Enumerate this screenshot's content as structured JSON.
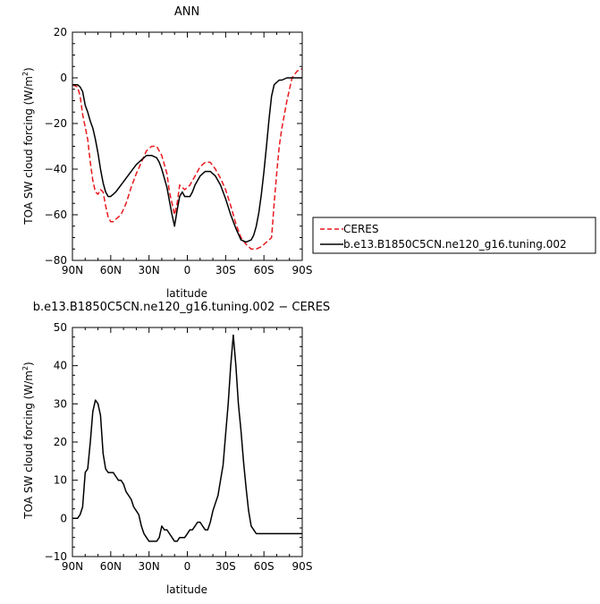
{
  "chart_data": [
    {
      "type": "line",
      "title": "ANN",
      "xlabel": "latitude",
      "ylabel": "TOA SW cloud forcing (W/m²)",
      "ylabel_main": "TOA SW cloud forcing (W/m",
      "ylabel_sup": "2",
      "ylabel_close": ")",
      "xlim": [
        90,
        -90
      ],
      "ylim": [
        -80,
        20
      ],
      "xticks": [
        90,
        60,
        30,
        0,
        -30,
        -60,
        -90
      ],
      "xtick_labels": [
        "90N",
        "60N",
        "30N",
        "0",
        "30S",
        "60S",
        "90S"
      ],
      "yticks": [
        -80,
        -60,
        -40,
        -20,
        0,
        20
      ],
      "ytick_labels": [
        "−80",
        "−60",
        "−40",
        "−20",
        "0",
        "20"
      ],
      "legend_placement": "right",
      "series": [
        {
          "name": "CERES",
          "color": "#e8191e",
          "dash": "dashed",
          "x": [
            90,
            86,
            84,
            82,
            78,
            76,
            74,
            72,
            70,
            68,
            66,
            64,
            62,
            60,
            58,
            56,
            52,
            48,
            44,
            40,
            36,
            32,
            28,
            24,
            20,
            16,
            14,
            12,
            10,
            8,
            6,
            4,
            2,
            0,
            -2,
            -4,
            -6,
            -10,
            -14,
            -18,
            -22,
            -26,
            -30,
            -34,
            -38,
            -42,
            -46,
            -50,
            -54,
            -58,
            -62,
            -66,
            -68,
            -70,
            -72,
            -74,
            -78,
            -82,
            -86,
            -90
          ],
          "y": [
            -3,
            -4,
            -8,
            -16,
            -27,
            -37,
            -45,
            -50,
            -51,
            -49,
            -50,
            -56,
            -61,
            -63,
            -63,
            -62,
            -60,
            -55,
            -48,
            -42,
            -37,
            -32,
            -30,
            -30,
            -34,
            -42,
            -50,
            -55,
            -60,
            -55,
            -47,
            -48,
            -49,
            -48,
            -47,
            -45,
            -43,
            -39,
            -37,
            -37,
            -40,
            -44,
            -49,
            -56,
            -64,
            -70,
            -73,
            -75,
            -75,
            -74,
            -72,
            -70,
            -55,
            -42,
            -30,
            -22,
            -10,
            0,
            3,
            4
          ]
        },
        {
          "name": "b.e13.B1850C5CN.ne120_g16.tuning.002",
          "color": "#000000",
          "dash": "solid",
          "x": [
            90,
            86,
            84,
            82,
            80,
            78,
            76,
            74,
            72,
            70,
            68,
            66,
            64,
            62,
            60,
            58,
            56,
            52,
            48,
            44,
            40,
            36,
            32,
            28,
            24,
            22,
            20,
            18,
            16,
            14,
            12,
            10,
            8,
            6,
            4,
            2,
            0,
            -2,
            -4,
            -6,
            -10,
            -14,
            -18,
            -22,
            -26,
            -30,
            -34,
            -38,
            -42,
            -46,
            -50,
            -52,
            -54,
            -56,
            -58,
            -60,
            -62,
            -64,
            -66,
            -68,
            -70,
            -72,
            -74,
            -78,
            -82,
            -86,
            -90
          ],
          "y": [
            -3,
            -3,
            -4,
            -6,
            -12,
            -15,
            -19,
            -22,
            -27,
            -33,
            -40,
            -46,
            -50,
            -52,
            -52,
            -51,
            -50,
            -47,
            -44,
            -41,
            -38,
            -36,
            -34,
            -34,
            -35,
            -37,
            -40,
            -44,
            -48,
            -54,
            -60,
            -65,
            -58,
            -52,
            -50,
            -52,
            -52,
            -52,
            -50,
            -47,
            -43,
            -41,
            -41,
            -43,
            -47,
            -53,
            -60,
            -66,
            -71,
            -72,
            -71,
            -69,
            -65,
            -59,
            -51,
            -41,
            -30,
            -18,
            -8,
            -3,
            -2,
            -1,
            -1,
            0,
            0,
            0,
            0
          ]
        }
      ]
    },
    {
      "type": "line",
      "title": "b.e13.B1850C5CN.ne120_g16.tuning.002 − CERES",
      "xlabel": "latitude",
      "ylabel": "TOA SW cloud forcing (W/m²)",
      "ylabel_main": "TOA SW cloud forcing (W/m",
      "ylabel_sup": "2",
      "ylabel_close": ")",
      "xlim": [
        90,
        -90
      ],
      "ylim": [
        -10,
        50
      ],
      "xticks": [
        90,
        60,
        30,
        0,
        -30,
        -60,
        -90
      ],
      "xtick_labels": [
        "90N",
        "60N",
        "30N",
        "0",
        "30S",
        "60S",
        "90S"
      ],
      "yticks": [
        -10,
        0,
        10,
        20,
        30,
        40,
        50
      ],
      "ytick_labels": [
        "−10",
        "0",
        "10",
        "20",
        "30",
        "40",
        "50"
      ],
      "series": [
        {
          "name": "",
          "color": "#000000",
          "dash": "solid",
          "x": [
            90,
            86,
            84,
            82,
            80,
            78,
            76,
            74,
            72,
            70,
            68,
            66,
            64,
            62,
            60,
            58,
            56,
            54,
            52,
            50,
            48,
            46,
            44,
            42,
            40,
            38,
            36,
            34,
            32,
            30,
            28,
            26,
            24,
            22,
            20,
            18,
            16,
            14,
            12,
            10,
            8,
            6,
            4,
            2,
            0,
            -2,
            -4,
            -6,
            -8,
            -10,
            -12,
            -14,
            -16,
            -18,
            -20,
            -22,
            -24,
            -26,
            -28,
            -30,
            -32,
            -34,
            -36,
            -38,
            -40,
            -42,
            -44,
            -46,
            -48,
            -50,
            -52,
            -54,
            -56,
            -58,
            -60,
            -62,
            -64,
            -66,
            -68,
            -70,
            -72,
            -74,
            -76,
            -78,
            -80,
            -82,
            -84,
            -86,
            -90
          ],
          "y": [
            0,
            0,
            1,
            3,
            12,
            13,
            20,
            28,
            31,
            30,
            27,
            17,
            13,
            12,
            12,
            12,
            11,
            10,
            10,
            9,
            7,
            6,
            5,
            3,
            2,
            1,
            -2,
            -4,
            -5,
            -6,
            -6,
            -6,
            -6,
            -5,
            -2,
            -3,
            -3,
            -4,
            -5,
            -6,
            -6,
            -5,
            -5,
            -5,
            -4,
            -3,
            -3,
            -2,
            -1,
            -1,
            -2,
            -3,
            -3,
            -1,
            2,
            4,
            6,
            10,
            14,
            22,
            30,
            40,
            48,
            40,
            30,
            23,
            15,
            8,
            2,
            -2,
            -3,
            -4,
            -4,
            -4,
            -4,
            -4,
            -4,
            -4,
            -4,
            -4,
            -4,
            -4,
            -4,
            -4,
            -4,
            -4,
            -4,
            -4,
            -4
          ]
        }
      ]
    }
  ]
}
